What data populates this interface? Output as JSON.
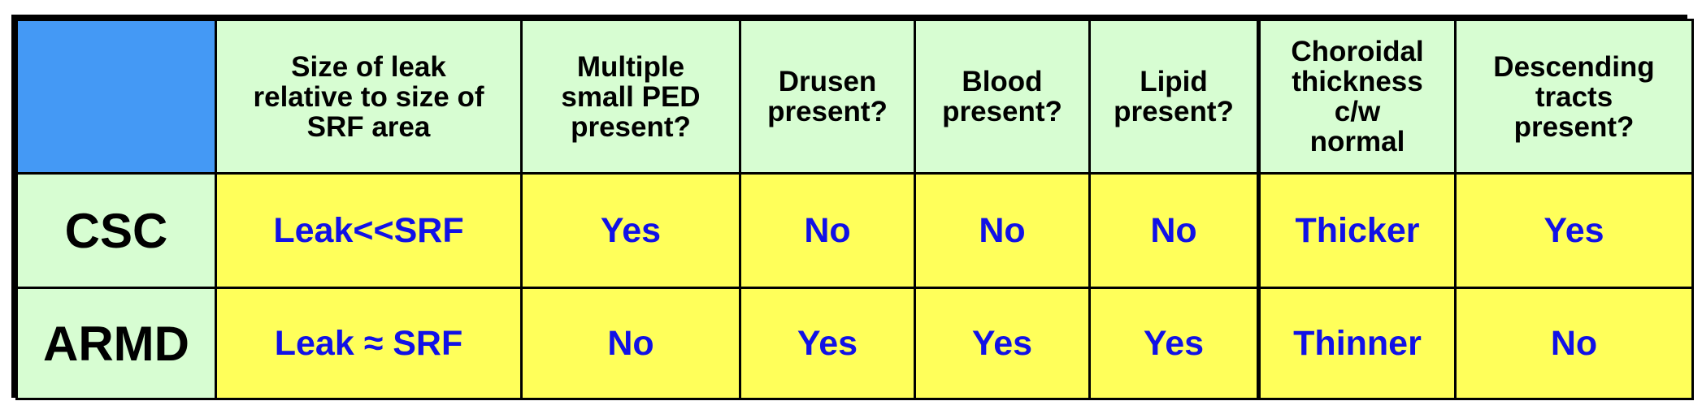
{
  "table": {
    "columns": [
      "Size of leak\nrelative to size of\nSRF area",
      "Multiple\nsmall PED\npresent?",
      "Drusen\npresent?",
      "Blood\npresent?",
      "Lipid\npresent?",
      "Choroidal\nthickness\nc/w\nnormal",
      "Descending\ntracts\npresent?"
    ],
    "rows": [
      {
        "label": "CSC",
        "cells": [
          "Leak<<SRF",
          "Yes",
          "No",
          "No",
          "No",
          "Thicker",
          "Yes"
        ]
      },
      {
        "label": "ARMD",
        "cells": [
          "Leak ≈ SRF",
          "No",
          "Yes",
          "Yes",
          "Yes",
          "Thinner",
          "No"
        ]
      }
    ]
  },
  "colors": {
    "corner": "#4499f5",
    "header_bg": "#d7fdd2",
    "cell_bg": "#ffff5a",
    "cell_text": "#1111e6",
    "border": "#000000"
  }
}
